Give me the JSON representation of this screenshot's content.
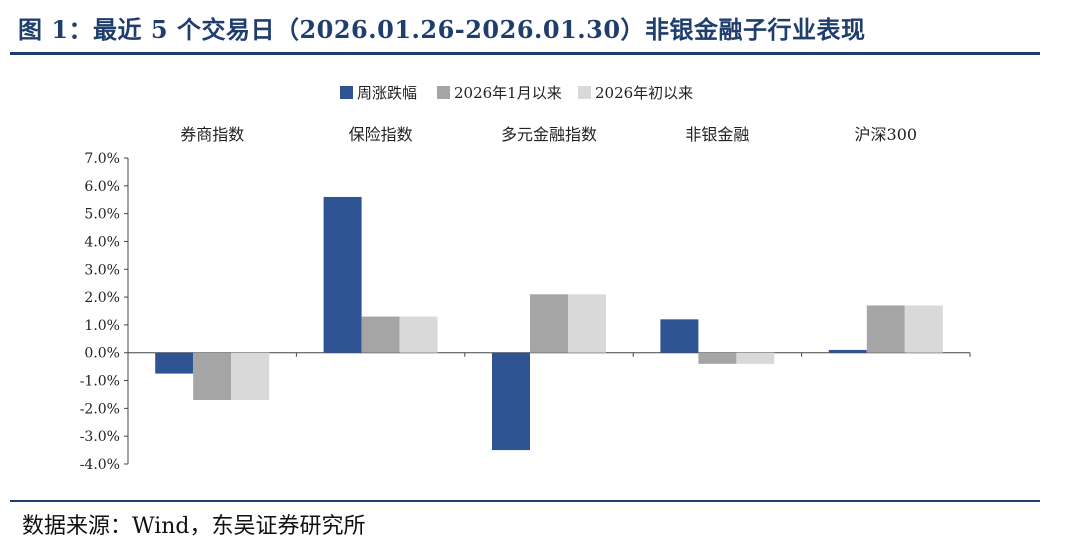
{
  "figure": {
    "title": "图 1：最近 5 个交易日（2026.01.26-2026.01.30）非银金融子行业表现",
    "source": "数据来源：Wind，东吴证券研究所"
  },
  "colors": {
    "title": "#1f3e6e",
    "series": [
      "#2f5493",
      "#a5a5a5",
      "#d9d9d9"
    ]
  },
  "chart_data": {
    "type": "bar",
    "categories": [
      "券商指数",
      "保险指数",
      "多元金融指数",
      "非银金融",
      "沪深300"
    ],
    "series": [
      {
        "name": "周涨跌幅",
        "values": [
          -0.75,
          5.6,
          -3.5,
          1.2,
          0.1
        ]
      },
      {
        "name": "2026年1月以来",
        "values": [
          -1.7,
          1.3,
          2.1,
          -0.4,
          1.7
        ]
      },
      {
        "name": "2026年初以来",
        "values": [
          -1.7,
          1.3,
          2.1,
          -0.4,
          1.7
        ]
      }
    ],
    "ylim": [
      -4.0,
      7.0
    ],
    "yticks": [
      "7.0%",
      "6.0%",
      "5.0%",
      "4.0%",
      "3.0%",
      "2.0%",
      "1.0%",
      "0.0%",
      "-1.0%",
      "-2.0%",
      "-3.0%",
      "-4.0%"
    ],
    "ytick_values": [
      7,
      6,
      5,
      4,
      3,
      2,
      1,
      0,
      -1,
      -2,
      -3,
      -4
    ],
    "category_labels_position": "top",
    "legend": "top-center",
    "grid": false
  }
}
